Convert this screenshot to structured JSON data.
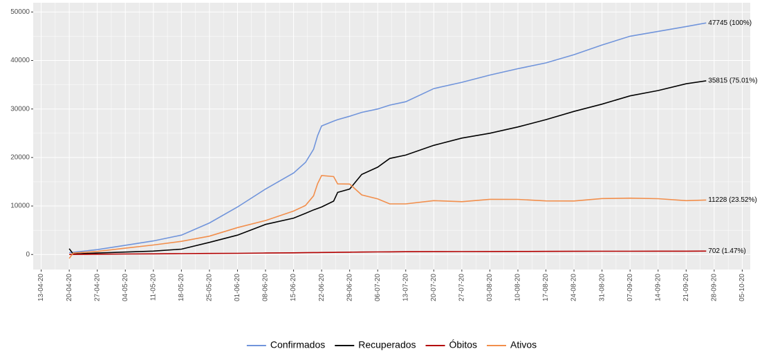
{
  "chart_data": {
    "type": "line",
    "x": [
      "20-04-20",
      "21-04-20",
      "27-04-20",
      "04-05-20",
      "11-05-20",
      "18-05-20",
      "25-05-20",
      "01-06-20",
      "08-06-20",
      "15-06-20",
      "18-06-20",
      "20-06-20",
      "21-06-20",
      "22-06-20",
      "25-06-20",
      "26-06-20",
      "29-06-20",
      "02-07-20",
      "06-07-20",
      "09-07-20",
      "13-07-20",
      "20-07-20",
      "27-07-20",
      "03-08-20",
      "10-08-20",
      "17-08-20",
      "24-08-20",
      "31-08-20",
      "07-09-20",
      "14-09-20",
      "21-09-20",
      "26-09-20"
    ],
    "series": [
      {
        "name": "Confirmados",
        "color": "#7094DB",
        "end_label": "47745 (100%)",
        "values": [
          400,
          450,
          1000,
          1900,
          2800,
          4000,
          6500,
          9800,
          13500,
          16800,
          19000,
          21700,
          24500,
          26500,
          27500,
          27800,
          28500,
          29300,
          30000,
          30800,
          31500,
          34200,
          35500,
          37000,
          38300,
          39500,
          41200,
          43200,
          45000,
          46000,
          47000,
          47745
        ]
      },
      {
        "name": "Recuperados",
        "color": "#000000",
        "end_label": "35815 (75.01%)",
        "values": [
          1200,
          100,
          300,
          500,
          700,
          1100,
          2500,
          4000,
          6200,
          7500,
          8500,
          9200,
          9500,
          9800,
          11000,
          12800,
          13500,
          16500,
          18000,
          19800,
          20500,
          22500,
          24000,
          25000,
          26300,
          27800,
          29500,
          31000,
          32700,
          33800,
          35200,
          35815
        ]
      },
      {
        "name": "Óbitos",
        "color": "#B30000",
        "end_label": "702 (1.47%)",
        "values": [
          20,
          25,
          60,
          100,
          140,
          180,
          220,
          250,
          300,
          350,
          380,
          400,
          410,
          420,
          440,
          450,
          480,
          510,
          530,
          550,
          570,
          590,
          610,
          620,
          640,
          650,
          660,
          670,
          680,
          690,
          695,
          702
        ]
      },
      {
        "name": "Ativos",
        "color": "#F28E4B",
        "end_label": "11228 (23.52%)",
        "values": [
          -800,
          300,
          640,
          1300,
          1960,
          2720,
          3780,
          5550,
          7000,
          8950,
          10120,
          12100,
          14590,
          16280,
          16060,
          14550,
          14520,
          12290,
          11470,
          10430,
          10430,
          11110,
          10890,
          11380,
          11360,
          11050,
          11040,
          11530,
          11620,
          11510,
          11105,
          11228
        ]
      }
    ],
    "xlim": [
      "11-04-20",
      "07-10-20"
    ],
    "xticks": [
      "13-04-20",
      "20-04-20",
      "27-04-20",
      "04-05-20",
      "11-05-20",
      "18-05-20",
      "25-05-20",
      "01-06-20",
      "08-06-20",
      "15-06-20",
      "22-06-20",
      "29-06-20",
      "06-07-20",
      "13-07-20",
      "20-07-20",
      "27-07-20",
      "03-08-20",
      "10-08-20",
      "17-08-20",
      "24-08-20",
      "31-08-20",
      "07-09-20",
      "14-09-20",
      "21-09-20",
      "28-09-20",
      "05-10-20"
    ],
    "ylim": [
      -3100,
      51900
    ],
    "yticks": [
      0,
      10000,
      20000,
      30000,
      40000,
      50000
    ],
    "grid": true,
    "legend": "bottom"
  }
}
